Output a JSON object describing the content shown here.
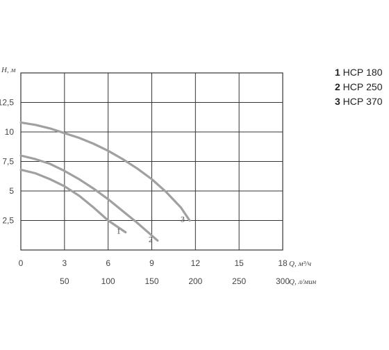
{
  "chart_data": {
    "type": "line",
    "y_axis_label": "H, м",
    "x_axis_label": "Q, м³/ч",
    "x2_axis_label": "Q, л/мин",
    "xlim": [
      0,
      18
    ],
    "ylim": [
      0,
      15
    ],
    "x_ticks": [
      "0",
      "3",
      "6",
      "9",
      "12",
      "15",
      "18"
    ],
    "x2_ticks": [
      "50",
      "100",
      "150",
      "200",
      "250",
      "300"
    ],
    "y_ticks": [
      "2,5",
      "5",
      "7,5",
      "10",
      "12,5"
    ],
    "grid": true,
    "series": [
      {
        "name": "НСР 180",
        "label": "1",
        "color": "#a0a0a0",
        "x": [
          0,
          1,
          2,
          3,
          4,
          5,
          6,
          7.2
        ],
        "y": [
          6.8,
          6.5,
          6.0,
          5.4,
          4.6,
          3.6,
          2.5,
          1.5
        ]
      },
      {
        "name": "НСР 250",
        "label": "2",
        "color": "#a0a0a0",
        "x": [
          0,
          1,
          2,
          3,
          4,
          5,
          6,
          7,
          8,
          9.4
        ],
        "y": [
          8.0,
          7.7,
          7.3,
          6.7,
          6.0,
          5.2,
          4.3,
          3.3,
          2.3,
          0.8
        ]
      },
      {
        "name": "НСР 370",
        "label": "3",
        "color": "#a0a0a0",
        "x": [
          0,
          1,
          2,
          3,
          4,
          5,
          6,
          7,
          8,
          9,
          10,
          11,
          11.6
        ],
        "y": [
          10.8,
          10.6,
          10.3,
          9.9,
          9.5,
          9.0,
          8.4,
          7.7,
          6.9,
          6.0,
          4.9,
          3.6,
          2.5
        ]
      }
    ],
    "legend": [
      {
        "num": "1",
        "text": "НСР 180"
      },
      {
        "num": "2",
        "text": "НСР 250"
      },
      {
        "num": "3",
        "text": "НСР 370"
      }
    ]
  }
}
